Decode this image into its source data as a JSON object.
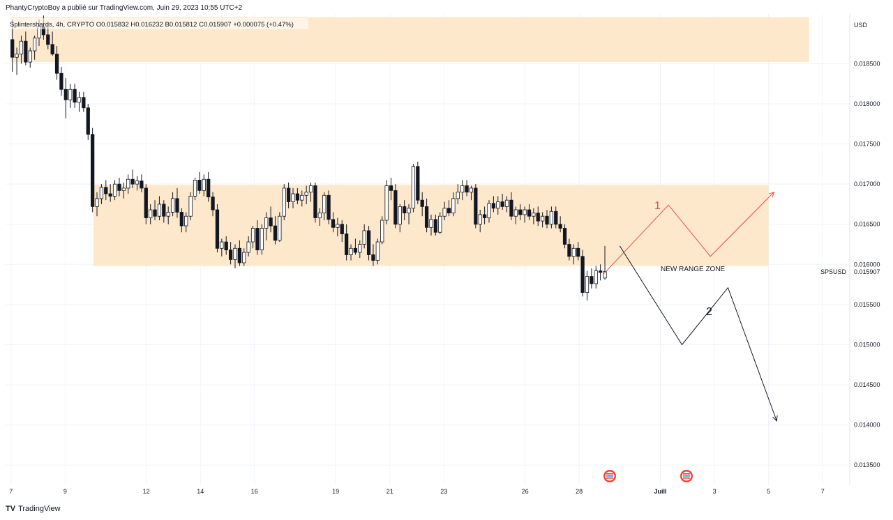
{
  "header": {
    "publisher": "PhantyCryptoBoy a publié sur TradingView.com, Juin 29, 2023 10:55 UTC+2"
  },
  "legend": {
    "text": "Splintershards, 4h, CRYPTO  O0.015832  H0.016232  B0.015812  C0.015907  +0.000075 (+0.47%)"
  },
  "footer": {
    "brand": "TradingView",
    "logo": "TV"
  },
  "chart_data": {
    "type": "candlestick",
    "currency": "USD",
    "symbol_tag": "SPSUSD",
    "last_price": "0.015907",
    "y_ticks": [
      "0.018500",
      "0.018000",
      "0.017500",
      "0.017000",
      "0.016500",
      "0.016000",
      "0.015500",
      "0.015000",
      "0.014500",
      "0.014000",
      "0.013500"
    ],
    "y_range": [
      0.01325,
      0.01912
    ],
    "x_range_days": [
      7,
      36.5
    ],
    "x_ticks": [
      {
        "label": "7",
        "day": 7
      },
      {
        "label": "9",
        "day": 9
      },
      {
        "label": "12",
        "day": 12
      },
      {
        "label": "14",
        "day": 14
      },
      {
        "label": "16",
        "day": 16
      },
      {
        "label": "19",
        "day": 19
      },
      {
        "label": "21",
        "day": 21
      },
      {
        "label": "23",
        "day": 23
      },
      {
        "label": "26",
        "day": 26
      },
      {
        "label": "28",
        "day": 28
      },
      {
        "label": "Juill",
        "day": 31
      },
      {
        "label": "3",
        "day": 33
      },
      {
        "label": "5",
        "day": 35
      },
      {
        "label": "7",
        "day": 37
      }
    ],
    "zones": [
      {
        "day_start": 7,
        "day_end": 36.5,
        "low": 0.01852,
        "high": 0.01908
      },
      {
        "day_start": 10.05,
        "day_end": 35,
        "low": 0.01598,
        "high": 0.01699
      }
    ],
    "annotations": {
      "range_zone_label": "NEW RANGE ZONE",
      "scenario_1": {
        "label": "1",
        "color": "#e84b4b",
        "points": [
          [
            28.9,
            0.01588
          ],
          [
            31.3,
            0.01674
          ],
          [
            32.85,
            0.0161
          ],
          [
            35.2,
            0.0169
          ]
        ]
      },
      "scenario_2": {
        "label": "2",
        "color": "#131722",
        "points": [
          [
            29.5,
            0.01623
          ],
          [
            31.8,
            0.015
          ],
          [
            33.5,
            0.01571
          ],
          [
            35.3,
            0.01405
          ]
        ]
      }
    },
    "candles": [
      [
        0.0188,
        0.01905,
        0.0184,
        0.01858
      ],
      [
        0.01858,
        0.0187,
        0.01836,
        0.01862
      ],
      [
        0.01862,
        0.01885,
        0.0185,
        0.01878
      ],
      [
        0.01878,
        0.0189,
        0.01848,
        0.01852
      ],
      [
        0.01852,
        0.0187,
        0.01845,
        0.01866
      ],
      [
        0.01866,
        0.01885,
        0.01855,
        0.01882
      ],
      [
        0.01882,
        0.01905,
        0.01872,
        0.01896
      ],
      [
        0.01896,
        0.0191,
        0.0188,
        0.01886
      ],
      [
        0.01886,
        0.019,
        0.01868,
        0.01874
      ],
      [
        0.01874,
        0.0189,
        0.0186,
        0.01862
      ],
      [
        0.01862,
        0.01872,
        0.0183,
        0.01838
      ],
      [
        0.01838,
        0.01846,
        0.0181,
        0.01818
      ],
      [
        0.01818,
        0.01832,
        0.01782,
        0.01805
      ],
      [
        0.01805,
        0.01825,
        0.01795,
        0.01818
      ],
      [
        0.01818,
        0.01825,
        0.01795,
        0.01802
      ],
      [
        0.01802,
        0.01815,
        0.0179,
        0.01808
      ],
      [
        0.01808,
        0.01815,
        0.0179,
        0.01795
      ],
      [
        0.01795,
        0.018,
        0.01755,
        0.01762
      ],
      [
        0.01762,
        0.0177,
        0.01665,
        0.01672
      ],
      [
        0.01672,
        0.0169,
        0.0166,
        0.01682
      ],
      [
        0.01682,
        0.017,
        0.01675,
        0.01696
      ],
      [
        0.01696,
        0.01705,
        0.0168,
        0.01688
      ],
      [
        0.01688,
        0.017,
        0.01678,
        0.01685
      ],
      [
        0.01685,
        0.01705,
        0.0168,
        0.017
      ],
      [
        0.017,
        0.01708,
        0.01685,
        0.01692
      ],
      [
        0.01692,
        0.01702,
        0.01682,
        0.01695
      ],
      [
        0.01695,
        0.01712,
        0.01688,
        0.01706
      ],
      [
        0.01706,
        0.01718,
        0.01695,
        0.017
      ],
      [
        0.017,
        0.0171,
        0.01692,
        0.01704
      ],
      [
        0.01704,
        0.01712,
        0.0169,
        0.01695
      ],
      [
        0.01695,
        0.017,
        0.0165,
        0.01658
      ],
      [
        0.01658,
        0.01675,
        0.0165,
        0.01668
      ],
      [
        0.01668,
        0.0168,
        0.01655,
        0.0166
      ],
      [
        0.0166,
        0.01685,
        0.01655,
        0.01675
      ],
      [
        0.01675,
        0.0168,
        0.01652,
        0.0166
      ],
      [
        0.0166,
        0.01672,
        0.0165,
        0.01665
      ],
      [
        0.01665,
        0.0169,
        0.0166,
        0.01682
      ],
      [
        0.01682,
        0.01695,
        0.01658,
        0.01665
      ],
      [
        0.01665,
        0.0167,
        0.0164,
        0.01648
      ],
      [
        0.01648,
        0.01665,
        0.0164,
        0.0166
      ],
      [
        0.0166,
        0.0169,
        0.01655,
        0.01685
      ],
      [
        0.01685,
        0.01708,
        0.0168,
        0.01705
      ],
      [
        0.01705,
        0.01715,
        0.01688,
        0.01692
      ],
      [
        0.01692,
        0.01712,
        0.01685,
        0.01706
      ],
      [
        0.01706,
        0.01715,
        0.01678,
        0.01684
      ],
      [
        0.01684,
        0.0169,
        0.0166,
        0.01668
      ],
      [
        0.01668,
        0.01675,
        0.01615,
        0.0162
      ],
      [
        0.0162,
        0.01632,
        0.0161,
        0.01628
      ],
      [
        0.01628,
        0.01635,
        0.01612,
        0.01618
      ],
      [
        0.01618,
        0.01628,
        0.016,
        0.01606
      ],
      [
        0.01606,
        0.01625,
        0.01595,
        0.0162
      ],
      [
        0.0162,
        0.0163,
        0.01598,
        0.01602
      ],
      [
        0.01602,
        0.0162,
        0.01598,
        0.01615
      ],
      [
        0.01615,
        0.01635,
        0.0161,
        0.01628
      ],
      [
        0.01628,
        0.01648,
        0.0162,
        0.01645
      ],
      [
        0.01645,
        0.01655,
        0.01612,
        0.01618
      ],
      [
        0.01618,
        0.0165,
        0.01612,
        0.01645
      ],
      [
        0.01645,
        0.01665,
        0.0163,
        0.01658
      ],
      [
        0.01658,
        0.01672,
        0.0164,
        0.01648
      ],
      [
        0.01648,
        0.0166,
        0.01625,
        0.0163
      ],
      [
        0.0163,
        0.01665,
        0.01628,
        0.0166
      ],
      [
        0.0166,
        0.017,
        0.01655,
        0.01695
      ],
      [
        0.01695,
        0.01702,
        0.0167,
        0.01678
      ],
      [
        0.01678,
        0.01695,
        0.0167,
        0.01688
      ],
      [
        0.01688,
        0.01695,
        0.01675,
        0.0168
      ],
      [
        0.0168,
        0.01692,
        0.01672,
        0.01686
      ],
      [
        0.01686,
        0.01698,
        0.01675,
        0.0169
      ],
      [
        0.0169,
        0.01702,
        0.01678,
        0.01698
      ],
      [
        0.01698,
        0.01702,
        0.01652,
        0.01658
      ],
      [
        0.01658,
        0.0167,
        0.01648,
        0.01664
      ],
      [
        0.01664,
        0.0169,
        0.01655,
        0.01686
      ],
      [
        0.01686,
        0.01692,
        0.0165,
        0.01656
      ],
      [
        0.01656,
        0.01665,
        0.0164,
        0.01646
      ],
      [
        0.01646,
        0.01658,
        0.01635,
        0.0165
      ],
      [
        0.0165,
        0.01655,
        0.01628,
        0.01638
      ],
      [
        0.01638,
        0.0165,
        0.01605,
        0.01612
      ],
      [
        0.01612,
        0.01625,
        0.01605,
        0.0162
      ],
      [
        0.0162,
        0.01632,
        0.01612,
        0.01615
      ],
      [
        0.01615,
        0.0163,
        0.01608,
        0.01625
      ],
      [
        0.01625,
        0.0165,
        0.0162,
        0.01642
      ],
      [
        0.01642,
        0.01648,
        0.01605,
        0.01612
      ],
      [
        0.01612,
        0.01625,
        0.01598,
        0.01605
      ],
      [
        0.01605,
        0.01632,
        0.016,
        0.01628
      ],
      [
        0.01628,
        0.0166,
        0.01625,
        0.01655
      ],
      [
        0.01655,
        0.01705,
        0.0165,
        0.01698
      ],
      [
        0.01698,
        0.01708,
        0.0168,
        0.01692
      ],
      [
        0.01692,
        0.017,
        0.01645,
        0.0165
      ],
      [
        0.0165,
        0.01675,
        0.0164,
        0.01672
      ],
      [
        0.01672,
        0.0168,
        0.01655,
        0.01664
      ],
      [
        0.01664,
        0.01675,
        0.0165,
        0.0167
      ],
      [
        0.0167,
        0.01725,
        0.01665,
        0.01722
      ],
      [
        0.01722,
        0.01728,
        0.01675,
        0.0168
      ],
      [
        0.0168,
        0.0169,
        0.0166,
        0.01672
      ],
      [
        0.01672,
        0.01682,
        0.0164,
        0.01646
      ],
      [
        0.01646,
        0.01662,
        0.01636,
        0.01656
      ],
      [
        0.01656,
        0.01662,
        0.01636,
        0.0164
      ],
      [
        0.0164,
        0.01665,
        0.01638,
        0.0166
      ],
      [
        0.0166,
        0.01678,
        0.01655,
        0.0167
      ],
      [
        0.0167,
        0.0168,
        0.0166,
        0.01664
      ],
      [
        0.01664,
        0.0169,
        0.0166,
        0.01682
      ],
      [
        0.01682,
        0.017,
        0.01675,
        0.0169
      ],
      [
        0.0169,
        0.01705,
        0.0168,
        0.01698
      ],
      [
        0.01698,
        0.01705,
        0.01685,
        0.0169
      ],
      [
        0.0169,
        0.01698,
        0.0168,
        0.01695
      ],
      [
        0.01695,
        0.017,
        0.01645,
        0.0165
      ],
      [
        0.0165,
        0.01668,
        0.0164,
        0.01662
      ],
      [
        0.01662,
        0.01672,
        0.0165,
        0.01658
      ],
      [
        0.01658,
        0.0168,
        0.01652,
        0.01676
      ],
      [
        0.01676,
        0.01685,
        0.01665,
        0.0167
      ],
      [
        0.0167,
        0.01685,
        0.01662,
        0.01678
      ],
      [
        0.01678,
        0.01688,
        0.01668,
        0.01672
      ],
      [
        0.01672,
        0.01685,
        0.01665,
        0.0168
      ],
      [
        0.0168,
        0.0169,
        0.01655,
        0.0166
      ],
      [
        0.0166,
        0.01672,
        0.0165,
        0.01668
      ],
      [
        0.01668,
        0.01675,
        0.01655,
        0.01662
      ],
      [
        0.01662,
        0.01672,
        0.01652,
        0.01668
      ],
      [
        0.01668,
        0.01675,
        0.01655,
        0.0166
      ],
      [
        0.0166,
        0.0167,
        0.0165,
        0.01664
      ],
      [
        0.01664,
        0.01672,
        0.01648,
        0.01654
      ],
      [
        0.01654,
        0.01665,
        0.01646,
        0.0166
      ],
      [
        0.0166,
        0.01668,
        0.01645,
        0.0165
      ],
      [
        0.0165,
        0.01672,
        0.01645,
        0.01666
      ],
      [
        0.01666,
        0.01672,
        0.01645,
        0.0165
      ],
      [
        0.0165,
        0.0166,
        0.0164,
        0.01645
      ],
      [
        0.01645,
        0.0165,
        0.0162,
        0.01625
      ],
      [
        0.01625,
        0.01632,
        0.01605,
        0.0161
      ],
      [
        0.0161,
        0.01625,
        0.016,
        0.0162
      ],
      [
        0.0162,
        0.01628,
        0.01605,
        0.0161
      ],
      [
        0.0161,
        0.01618,
        0.0156,
        0.01565
      ],
      [
        0.01565,
        0.01592,
        0.01555,
        0.01585
      ],
      [
        0.01585,
        0.01595,
        0.0157,
        0.01576
      ],
      [
        0.01576,
        0.01598,
        0.0157,
        0.01592
      ],
      [
        0.01592,
        0.016,
        0.0158,
        0.0159
      ],
      [
        0.01583,
        0.01623,
        0.01581,
        0.01591
      ]
    ]
  }
}
